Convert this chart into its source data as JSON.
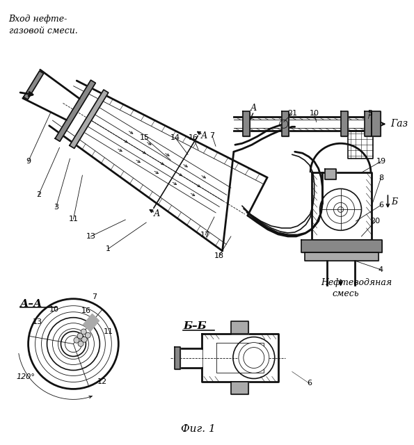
{
  "bg_color": "#ffffff",
  "line_color": "#111111",
  "fig_width": 5.95,
  "fig_height": 6.4,
  "dpi": 100,
  "inlet_text": "Вход нефте-\nгазовой смеси.",
  "gas_text": "Газ",
  "oil_water_line1": "Нефтеводяная",
  "oil_water_line2": "смесь",
  "section_aa": "А–А",
  "section_bb": "Б–Б",
  "fig_label": "Фиг. 1",
  "angle_label": "120°",
  "note_A": "А",
  "note_B": "Б"
}
